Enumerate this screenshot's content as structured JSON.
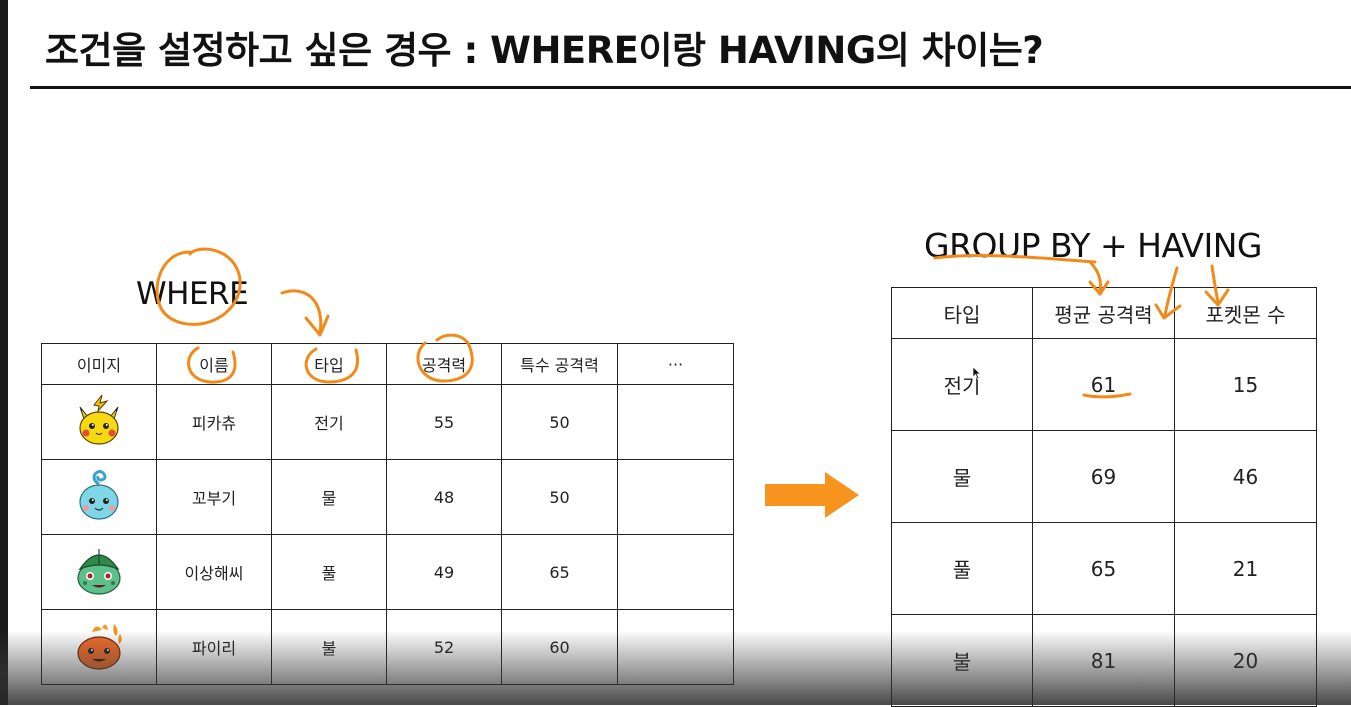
{
  "slide": {
    "title": "조건을 설정하고 싶은 경우 : WHERE이랑 HAVING의 차이는?"
  },
  "where_label": "WHERE",
  "groupby_label": "GROUP BY + HAVING",
  "pokemon_table": {
    "headers": [
      "이미지",
      "이름",
      "타입",
      "공격력",
      "특수 공격력",
      "···"
    ],
    "rows": [
      {
        "image": "pikachu-image",
        "name": "피카츄",
        "type": "전기",
        "attack": "55",
        "special_attack": "50",
        "extra": ""
      },
      {
        "image": "squirtle-image",
        "name": "꼬부기",
        "type": "물",
        "attack": "48",
        "special_attack": "50",
        "extra": ""
      },
      {
        "image": "bulbasaur-image",
        "name": "이상해씨",
        "type": "풀",
        "attack": "49",
        "special_attack": "65",
        "extra": ""
      },
      {
        "image": "charmander-image",
        "name": "파이리",
        "type": "불",
        "attack": "52",
        "special_attack": "60",
        "extra": ""
      }
    ]
  },
  "aggregate_table": {
    "headers": [
      "타입",
      "평균 공격력",
      "포켓몬 수"
    ],
    "rows": [
      {
        "type": "전기",
        "avg_attack": "61",
        "count": "15"
      },
      {
        "type": "물",
        "avg_attack": "69",
        "count": "46"
      },
      {
        "type": "풀",
        "avg_attack": "65",
        "count": "21"
      },
      {
        "type": "불",
        "avg_attack": "81",
        "count": "20"
      }
    ]
  },
  "colors": {
    "annotation": "#f28a1a",
    "arrow": "#f7941d",
    "text": "#111111",
    "border": "#222222"
  }
}
